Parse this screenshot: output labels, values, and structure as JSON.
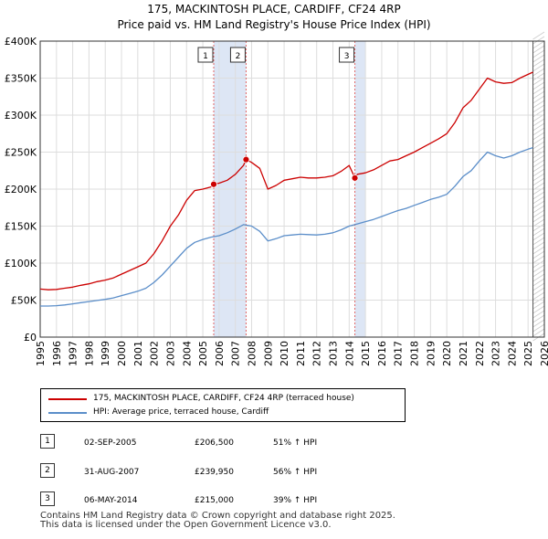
{
  "chart_data": {
    "type": "line",
    "title": "175, MACKINTOSH PLACE, CARDIFF, CF24 4RP",
    "subtitle": "Price paid vs. HM Land Registry's House Price Index (HPI)",
    "xlim": [
      1995,
      2026
    ],
    "ylim": [
      0,
      400000
    ],
    "x_ticks": [
      "1995",
      "1996",
      "1997",
      "1998",
      "1999",
      "2000",
      "2001",
      "2002",
      "2003",
      "2004",
      "2005",
      "2006",
      "2007",
      "2008",
      "2009",
      "2010",
      "2011",
      "2012",
      "2013",
      "2014",
      "2015",
      "2016",
      "2017",
      "2018",
      "2019",
      "2020",
      "2021",
      "2022",
      "2023",
      "2024",
      "2025",
      "2026"
    ],
    "y_ticks": [
      {
        "value": 0,
        "label": "£0"
      },
      {
        "value": 50000,
        "label": "£50K"
      },
      {
        "value": 100000,
        "label": "£100K"
      },
      {
        "value": 150000,
        "label": "£150K"
      },
      {
        "value": 200000,
        "label": "£200K"
      },
      {
        "value": 250000,
        "label": "£250K"
      },
      {
        "value": 300000,
        "label": "£300K"
      },
      {
        "value": 350000,
        "label": "£350K"
      },
      {
        "value": 400000,
        "label": "£400K"
      }
    ],
    "grid": true,
    "series": [
      {
        "name": "175, MACKINTOSH PLACE, CARDIFF, CF24 4RP (terraced house)",
        "color": "#cc0000",
        "points": [
          [
            1995.0,
            65000
          ],
          [
            1995.5,
            64000
          ],
          [
            1996.0,
            64500
          ],
          [
            1996.5,
            66000
          ],
          [
            1997.0,
            67500
          ],
          [
            1997.5,
            70000
          ],
          [
            1998.0,
            72000
          ],
          [
            1998.5,
            75000
          ],
          [
            1999.0,
            77000
          ],
          [
            1999.5,
            80000
          ],
          [
            2000.0,
            85000
          ],
          [
            2000.5,
            90000
          ],
          [
            2001.0,
            95000
          ],
          [
            2001.5,
            100000
          ],
          [
            2002.0,
            113000
          ],
          [
            2002.5,
            130000
          ],
          [
            2003.0,
            150000
          ],
          [
            2003.5,
            165000
          ],
          [
            2004.0,
            185000
          ],
          [
            2004.5,
            198000
          ],
          [
            2005.0,
            200000
          ],
          [
            2005.5,
            203000
          ],
          [
            2005.67,
            206500
          ],
          [
            2006.0,
            208000
          ],
          [
            2006.5,
            212000
          ],
          [
            2007.0,
            220000
          ],
          [
            2007.5,
            232000
          ],
          [
            2007.66,
            239950
          ],
          [
            2008.0,
            236000
          ],
          [
            2008.5,
            228000
          ],
          [
            2009.0,
            200000
          ],
          [
            2009.5,
            205000
          ],
          [
            2010.0,
            212000
          ],
          [
            2010.5,
            214000
          ],
          [
            2011.0,
            216000
          ],
          [
            2011.5,
            215000
          ],
          [
            2012.0,
            215000
          ],
          [
            2012.5,
            216000
          ],
          [
            2013.0,
            218000
          ],
          [
            2013.5,
            224000
          ],
          [
            2014.0,
            232000
          ],
          [
            2014.35,
            215000
          ],
          [
            2014.5,
            220000
          ],
          [
            2015.0,
            222000
          ],
          [
            2015.5,
            226000
          ],
          [
            2016.0,
            232000
          ],
          [
            2016.5,
            238000
          ],
          [
            2017.0,
            240000
          ],
          [
            2017.5,
            245000
          ],
          [
            2018.0,
            250000
          ],
          [
            2018.5,
            256000
          ],
          [
            2019.0,
            262000
          ],
          [
            2019.5,
            268000
          ],
          [
            2020.0,
            275000
          ],
          [
            2020.5,
            290000
          ],
          [
            2021.0,
            310000
          ],
          [
            2021.5,
            320000
          ],
          [
            2022.0,
            335000
          ],
          [
            2022.5,
            350000
          ],
          [
            2023.0,
            345000
          ],
          [
            2023.5,
            343000
          ],
          [
            2024.0,
            344000
          ],
          [
            2024.5,
            350000
          ],
          [
            2025.0,
            355000
          ],
          [
            2025.3,
            358000
          ]
        ]
      },
      {
        "name": "HPI: Average price, terraced house, Cardiff",
        "color": "#5b8ec9",
        "points": [
          [
            1995.0,
            42000
          ],
          [
            1995.5,
            42000
          ],
          [
            1996.0,
            42500
          ],
          [
            1996.5,
            43500
          ],
          [
            1997.0,
            45000
          ],
          [
            1997.5,
            46500
          ],
          [
            1998.0,
            48000
          ],
          [
            1998.5,
            49500
          ],
          [
            1999.0,
            51000
          ],
          [
            1999.5,
            53000
          ],
          [
            2000.0,
            56000
          ],
          [
            2000.5,
            59000
          ],
          [
            2001.0,
            62000
          ],
          [
            2001.5,
            66000
          ],
          [
            2002.0,
            74000
          ],
          [
            2002.5,
            84000
          ],
          [
            2003.0,
            96000
          ],
          [
            2003.5,
            108000
          ],
          [
            2004.0,
            120000
          ],
          [
            2004.5,
            128000
          ],
          [
            2005.0,
            132000
          ],
          [
            2005.5,
            135000
          ],
          [
            2006.0,
            137000
          ],
          [
            2006.5,
            141000
          ],
          [
            2007.0,
            146000
          ],
          [
            2007.5,
            152000
          ],
          [
            2008.0,
            150000
          ],
          [
            2008.5,
            143000
          ],
          [
            2009.0,
            130000
          ],
          [
            2009.5,
            133000
          ],
          [
            2010.0,
            137000
          ],
          [
            2010.5,
            138000
          ],
          [
            2011.0,
            139000
          ],
          [
            2011.5,
            138500
          ],
          [
            2012.0,
            138000
          ],
          [
            2012.5,
            139000
          ],
          [
            2013.0,
            141000
          ],
          [
            2013.5,
            145000
          ],
          [
            2014.0,
            150000
          ],
          [
            2014.5,
            153000
          ],
          [
            2015.0,
            156000
          ],
          [
            2015.5,
            159000
          ],
          [
            2016.0,
            163000
          ],
          [
            2016.5,
            167000
          ],
          [
            2017.0,
            171000
          ],
          [
            2017.5,
            174000
          ],
          [
            2018.0,
            178000
          ],
          [
            2018.5,
            182000
          ],
          [
            2019.0,
            186000
          ],
          [
            2019.5,
            189000
          ],
          [
            2020.0,
            193000
          ],
          [
            2020.5,
            204000
          ],
          [
            2021.0,
            217000
          ],
          [
            2021.5,
            225000
          ],
          [
            2022.0,
            238000
          ],
          [
            2022.5,
            250000
          ],
          [
            2023.0,
            245000
          ],
          [
            2023.5,
            242000
          ],
          [
            2024.0,
            245000
          ],
          [
            2024.5,
            250000
          ],
          [
            2025.0,
            254000
          ],
          [
            2025.3,
            256000
          ]
        ]
      }
    ],
    "sales": [
      {
        "label": "1",
        "x": 2005.67,
        "price": 206500,
        "date": "02-SEP-2005",
        "price_label": "£206,500",
        "hpi": "51% ↑ HPI"
      },
      {
        "label": "2",
        "x": 2007.66,
        "price": 239950,
        "date": "31-AUG-2007",
        "price_label": "£239,950",
        "hpi": "56% ↑ HPI"
      },
      {
        "label": "3",
        "x": 2014.35,
        "price": 215000,
        "date": "06-MAY-2014",
        "price_label": "£215,000",
        "hpi": "39% ↑ HPI"
      }
    ],
    "shaded_ranges": [
      [
        2005.67,
        2007.66
      ],
      [
        2014.35,
        2015.0
      ]
    ],
    "forecast_start": 2025.3,
    "legend_position": "below"
  },
  "colors": {
    "property": "#cc0000",
    "hpi": "#5b8ec9",
    "shade": "#dde6f5",
    "marker_line": "#e06666",
    "grid": "#dddddd"
  },
  "legend": {
    "property_label": "175, MACKINTOSH PLACE, CARDIFF, CF24 4RP (terraced house)",
    "hpi_label": "HPI: Average price, terraced house, Cardiff"
  },
  "footer": {
    "line1": "Contains HM Land Registry data © Crown copyright and database right 2025.",
    "line2": "This data is licensed under the Open Government Licence v3.0."
  }
}
